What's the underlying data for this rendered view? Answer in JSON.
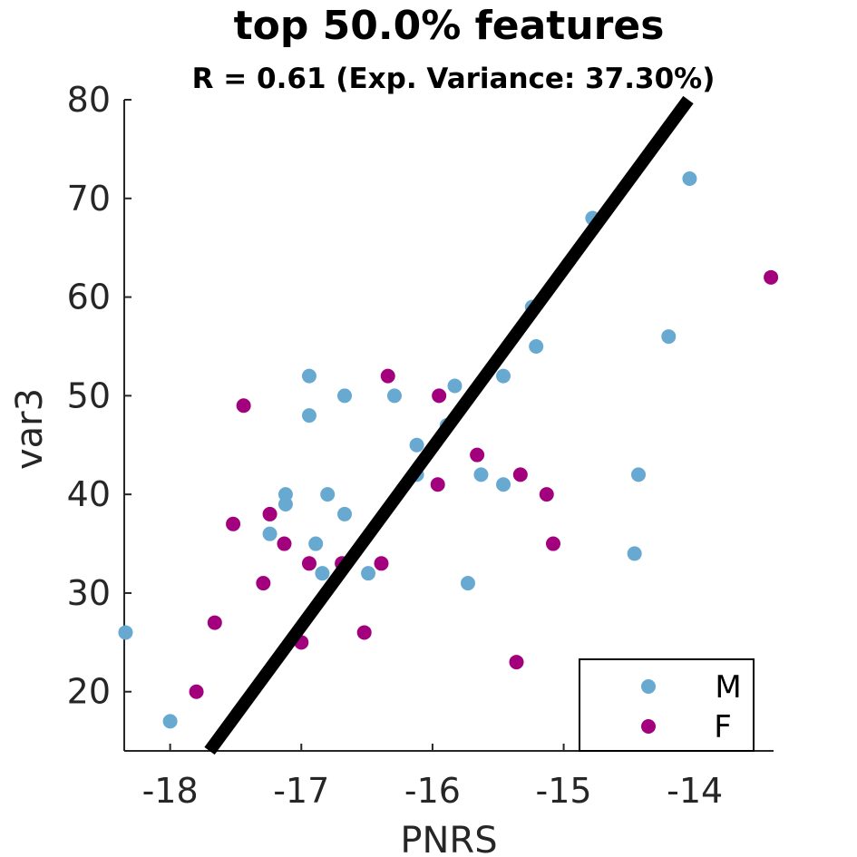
{
  "chart_data": {
    "type": "scatter",
    "title": "top 50.0% features",
    "subtitle": "R = 0.61 (Exp. Variance: 37.30%)",
    "xlabel": "PNRS",
    "ylabel": "var3",
    "xlim": [
      -18.35,
      -13.4
    ],
    "ylim": [
      14,
      80
    ],
    "xticks": [
      -18,
      -17,
      -16,
      -15,
      -14
    ],
    "yticks": [
      20,
      30,
      40,
      50,
      60,
      70,
      80
    ],
    "legend_position": "bottom-right",
    "fit_line": {
      "x": [
        -17.7,
        -14.05
      ],
      "y": [
        14,
        80
      ],
      "color": "#000000"
    },
    "series": [
      {
        "name": "M",
        "color": "#67a9d1",
        "points": [
          [
            -18.34,
            26
          ],
          [
            -18.0,
            17
          ],
          [
            -17.24,
            36
          ],
          [
            -17.12,
            40
          ],
          [
            -17.12,
            39
          ],
          [
            -16.94,
            52
          ],
          [
            -16.94,
            48
          ],
          [
            -16.89,
            35
          ],
          [
            -16.84,
            32
          ],
          [
            -16.8,
            40
          ],
          [
            -16.67,
            50
          ],
          [
            -16.67,
            38
          ],
          [
            -16.49,
            32
          ],
          [
            -16.29,
            50
          ],
          [
            -16.12,
            45
          ],
          [
            -16.12,
            42
          ],
          [
            -15.89,
            47
          ],
          [
            -15.83,
            51
          ],
          [
            -15.73,
            31
          ],
          [
            -15.63,
            42
          ],
          [
            -15.46,
            41
          ],
          [
            -15.46,
            52
          ],
          [
            -15.24,
            59
          ],
          [
            -15.21,
            55
          ],
          [
            -14.78,
            68
          ],
          [
            -14.46,
            34
          ],
          [
            -14.43,
            42
          ],
          [
            -14.2,
            56
          ],
          [
            -14.04,
            72
          ]
        ]
      },
      {
        "name": "F",
        "color": "#a3007e",
        "points": [
          [
            -17.8,
            20
          ],
          [
            -17.66,
            27
          ],
          [
            -17.52,
            37
          ],
          [
            -17.44,
            49
          ],
          [
            -17.29,
            31
          ],
          [
            -17.24,
            38
          ],
          [
            -17.13,
            35
          ],
          [
            -17.0,
            25
          ],
          [
            -16.94,
            33
          ],
          [
            -16.69,
            33
          ],
          [
            -16.52,
            26
          ],
          [
            -16.39,
            33
          ],
          [
            -16.34,
            52
          ],
          [
            -15.96,
            41
          ],
          [
            -15.95,
            50
          ],
          [
            -15.66,
            44
          ],
          [
            -15.36,
            23
          ],
          [
            -15.33,
            42
          ],
          [
            -15.13,
            40
          ],
          [
            -15.08,
            35
          ],
          [
            -13.42,
            62
          ]
        ]
      }
    ]
  }
}
